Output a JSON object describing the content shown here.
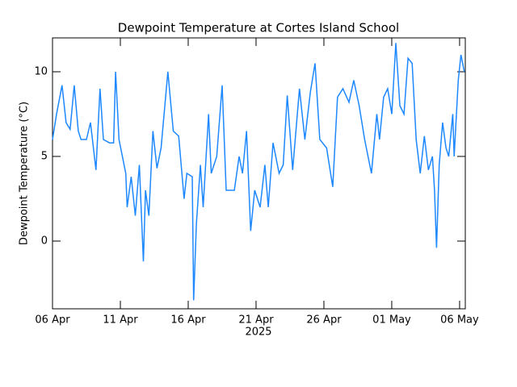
{
  "chart_data": {
    "type": "line",
    "title": "Dewpoint Temperature at Cortes Island School",
    "y_label": "Dewpoint Temperature (°C)",
    "x_label": "2025",
    "color": "#1e88ff",
    "x": [
      0,
      0.3,
      0.7,
      1.0,
      1.3,
      1.6,
      1.9,
      2.1,
      2.5,
      2.8,
      3.2,
      3.5,
      3.75,
      4.2,
      4.5,
      4.65,
      4.9,
      5.4,
      5.5,
      5.8,
      6.1,
      6.4,
      6.7,
      6.85,
      7.1,
      7.4,
      7.7,
      8.0,
      8.5,
      8.9,
      9.3,
      9.7,
      9.9,
      10.3,
      10.4,
      10.6,
      10.9,
      11.1,
      11.5,
      11.7,
      12.1,
      12.5,
      12.8,
      13.4,
      13.75,
      14.0,
      14.3,
      14.6,
      14.9,
      15.3,
      15.65,
      15.9,
      16.25,
      16.7,
      17.0,
      17.3,
      17.7,
      18.2,
      18.6,
      19.0,
      19.35,
      19.7,
      20.2,
      20.65,
      21.0,
      21.4,
      21.85,
      22.2,
      22.6,
      23.0,
      23.5,
      23.9,
      24.1,
      24.4,
      24.7,
      25.0,
      25.3,
      25.6,
      25.9,
      26.2,
      26.5,
      26.8,
      27.1,
      27.4,
      27.7,
      28.0,
      28.15,
      28.3,
      28.5,
      28.75,
      29.0,
      29.2,
      29.5,
      29.6,
      29.9,
      30.1,
      30.35
    ],
    "values": [
      6,
      7.5,
      9.2,
      7,
      6.6,
      9.2,
      6.5,
      6,
      6,
      7,
      4.2,
      9,
      6,
      5.8,
      5.8,
      10,
      6,
      4,
      2,
      3.8,
      1.5,
      4.5,
      -1.2,
      3,
      1.5,
      6.5,
      4.3,
      5.5,
      10,
      6.5,
      6.2,
      2.5,
      4,
      3.8,
      -3.5,
      1,
      4.5,
      2,
      7.5,
      4,
      5,
      9.2,
      3,
      3,
      5,
      4,
      6.5,
      0.6,
      3,
      2,
      4.5,
      2,
      5.8,
      4,
      4.5,
      8.6,
      4.2,
      9,
      6,
      8.8,
      10.5,
      6,
      5.5,
      3.2,
      8.5,
      9,
      8.2,
      9.5,
      8,
      6,
      4,
      7.5,
      6,
      8.5,
      9,
      7.5,
      11.7,
      8,
      7.5,
      10.8,
      10.5,
      6,
      4,
      6.2,
      4.2,
      5,
      3,
      -0.4,
      4.5,
      7,
      5.5,
      5,
      7.5,
      5,
      9.5,
      11,
      10
    ],
    "xlim": [
      0,
      30.42
    ],
    "xticks": [
      {
        "value": 0,
        "label": "06 Apr"
      },
      {
        "value": 5,
        "label": "11 Apr"
      },
      {
        "value": 10,
        "label": "16 Apr"
      },
      {
        "value": 15,
        "label": "21 Apr"
      },
      {
        "value": 20,
        "label": "26 Apr"
      },
      {
        "value": 25,
        "label": "01 May"
      },
      {
        "value": 30,
        "label": "06 May"
      }
    ],
    "ylim": [
      -4,
      12
    ],
    "yticks": [
      0,
      5,
      10
    ]
  }
}
